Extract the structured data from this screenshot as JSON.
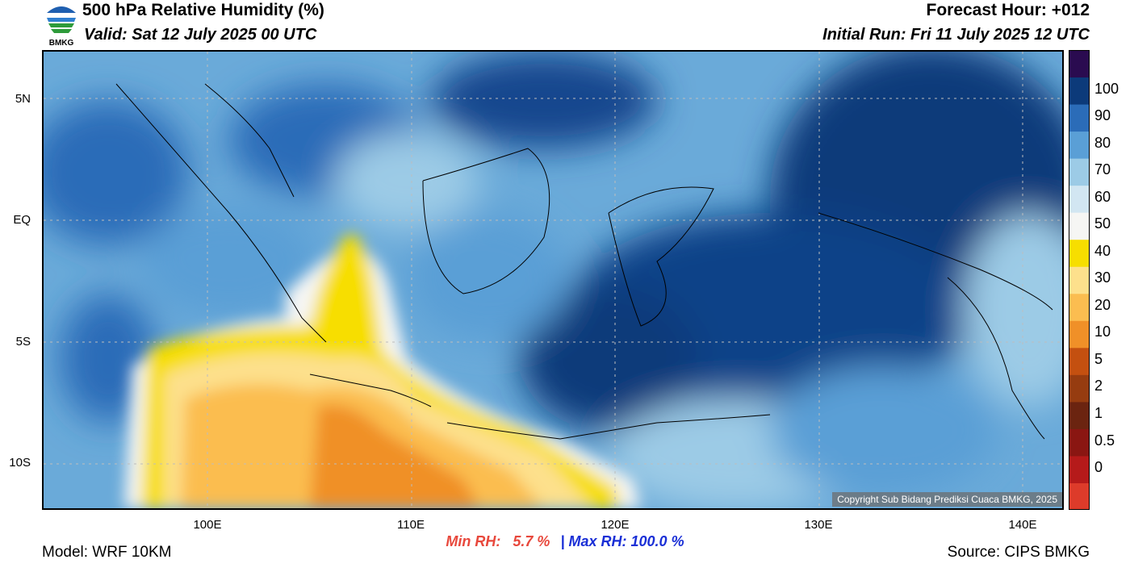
{
  "header": {
    "title": "500 hPa Relative Humidity (%)",
    "valid": "Valid: Sat 12 July 2025 00 UTC",
    "forecast_hour": "Forecast Hour: +012",
    "initial_run": "Initial Run: Fri 11 July 2025 12 UTC",
    "logo_text": "BMKG"
  },
  "axes": {
    "y_labels": [
      "5N",
      "EQ",
      "5S",
      "10S"
    ],
    "x_labels": [
      "100E",
      "110E",
      "120E",
      "130E",
      "140E"
    ]
  },
  "colorbar": {
    "labels": [
      "100",
      "90",
      "80",
      "70",
      "60",
      "50",
      "40",
      "30",
      "20",
      "10",
      "5",
      "2",
      "1",
      "0.5",
      "0"
    ],
    "colors": [
      "#dd3b2a",
      "#b51a1a",
      "#8a1612",
      "#6b2410",
      "#963c10",
      "#c45010",
      "#f09028",
      "#fbbd50",
      "#fde08c",
      "#f7de00",
      "#f6f6f4",
      "#d2e6f2",
      "#9ccbe6",
      "#5a9fd6",
      "#2b6cb8",
      "#0c3a7a",
      "#2a0b50"
    ]
  },
  "stats": {
    "min_label": "Min RH:",
    "min_value": "5.7 %",
    "separator": "|",
    "max_label": "Max RH: 100.0 %"
  },
  "footer": {
    "model": "Model: WRF 10KM",
    "source": "Source: CIPS BMKG",
    "copyright": "Copyright Sub Bidang Prediksi Cuaca BMKG, 2025"
  }
}
